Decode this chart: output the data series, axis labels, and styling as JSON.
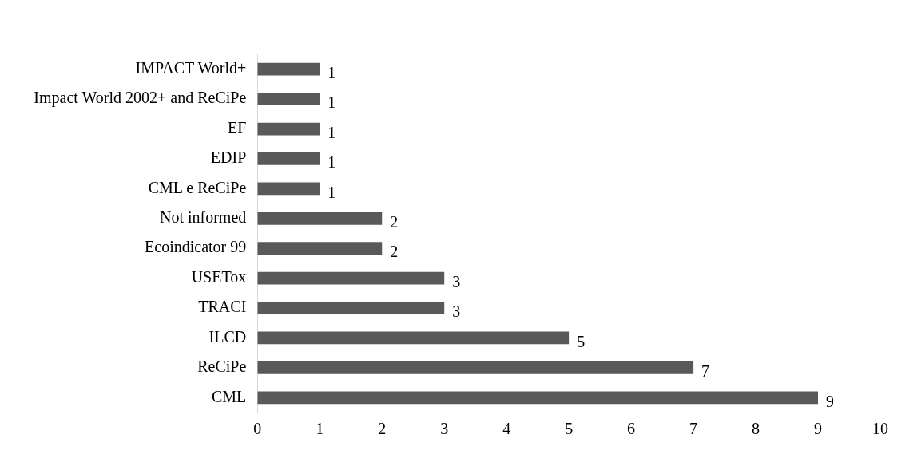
{
  "chart_data": {
    "type": "bar",
    "orientation": "horizontal",
    "categories": [
      "IMPACT World+",
      "Impact World 2002+ and ReCiPe",
      "EF",
      "EDIP",
      "CML e ReCiPe",
      "Not informed",
      "Ecoindicator 99",
      "USETox",
      "TRACI",
      "ILCD",
      "ReCiPe",
      "CML"
    ],
    "values": [
      1,
      1,
      1,
      1,
      1,
      2,
      2,
      3,
      3,
      5,
      7,
      9
    ],
    "color": "#595959",
    "xlim": [
      0,
      10
    ],
    "xticks": [
      0,
      1,
      2,
      3,
      4,
      5,
      6,
      7,
      8,
      9,
      10
    ],
    "grid": false,
    "legend": false,
    "data_labels": true
  }
}
